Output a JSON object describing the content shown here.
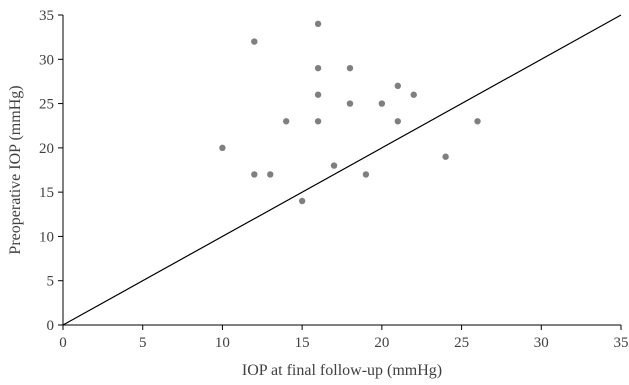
{
  "chart_data": {
    "type": "scatter",
    "xlabel": "IOP at final follow-up (mmHg)",
    "ylabel": "Preoperative IOP (mmHg)",
    "xlim": [
      0,
      35
    ],
    "ylim": [
      0,
      35
    ],
    "x_ticks": [
      0,
      5,
      10,
      15,
      20,
      25,
      30,
      35
    ],
    "y_ticks": [
      0,
      5,
      10,
      15,
      20,
      25,
      30,
      35
    ],
    "grid": false,
    "legend": "none",
    "points": [
      {
        "x": 10,
        "y": 20
      },
      {
        "x": 12,
        "y": 32
      },
      {
        "x": 12,
        "y": 17
      },
      {
        "x": 13,
        "y": 17
      },
      {
        "x": 14,
        "y": 23
      },
      {
        "x": 15,
        "y": 14
      },
      {
        "x": 16,
        "y": 34
      },
      {
        "x": 16,
        "y": 29
      },
      {
        "x": 16,
        "y": 26
      },
      {
        "x": 16,
        "y": 23
      },
      {
        "x": 17,
        "y": 18
      },
      {
        "x": 18,
        "y": 29
      },
      {
        "x": 18,
        "y": 25
      },
      {
        "x": 19,
        "y": 17
      },
      {
        "x": 20,
        "y": 25
      },
      {
        "x": 21,
        "y": 27
      },
      {
        "x": 21,
        "y": 23
      },
      {
        "x": 22,
        "y": 26
      },
      {
        "x": 24,
        "y": 19
      },
      {
        "x": 26,
        "y": 23
      }
    ],
    "reference_line": {
      "x": [
        0,
        35
      ],
      "y": [
        0,
        35
      ]
    },
    "colors": {
      "point": "#7f7f7f",
      "line": "#000000",
      "axis": "#000000",
      "text": "#404040"
    }
  }
}
